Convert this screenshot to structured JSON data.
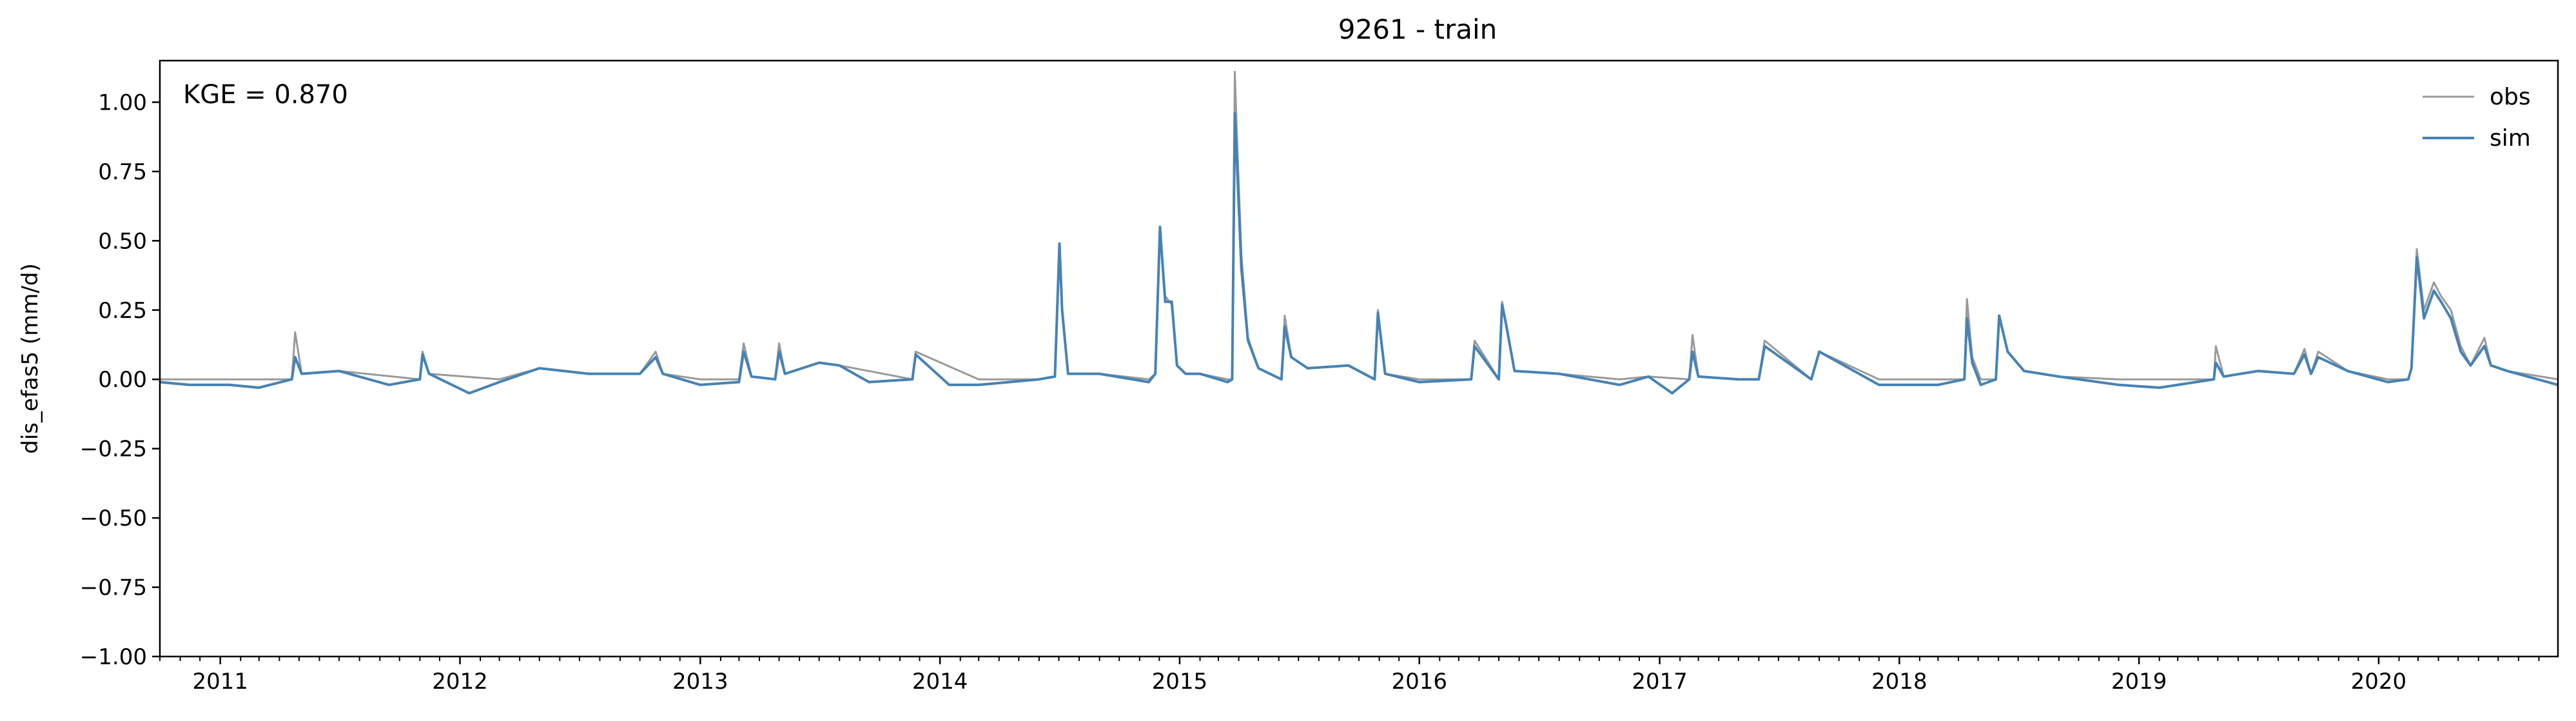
{
  "chart_data": {
    "type": "line",
    "title": "9261 - train",
    "xlabel": "",
    "ylabel": "dis_efas5 (mm/d)",
    "annotation": "KGE = 0.870",
    "xlim": [
      "2010-10-01",
      "2020-09-30"
    ],
    "ylim": [
      -1.0,
      1.15
    ],
    "yticks": [
      -1.0,
      -0.75,
      -0.5,
      -0.25,
      0.0,
      0.25,
      0.5,
      0.75,
      1.0
    ],
    "ytick_labels": [
      "−1.00",
      "−0.75",
      "−0.50",
      "−0.25",
      "0.00",
      "0.25",
      "0.50",
      "0.75",
      "1.00"
    ],
    "xticks": [
      "2011-01-01",
      "2012-01-01",
      "2013-01-01",
      "2014-01-01",
      "2015-01-01",
      "2016-01-01",
      "2017-01-01",
      "2018-01-01",
      "2019-01-01",
      "2020-01-01"
    ],
    "xtick_labels": [
      "2011",
      "2012",
      "2013",
      "2014",
      "2015",
      "2016",
      "2017",
      "2018",
      "2019",
      "2020"
    ],
    "grid": false,
    "legend_position": "top-right",
    "series": [
      {
        "name": "obs",
        "color": "#999999",
        "x": [
          "2010-10-01",
          "2011-01-15",
          "2011-04-20",
          "2011-04-25",
          "2011-05-05",
          "2011-07-01",
          "2011-11-01",
          "2011-11-05",
          "2011-11-15",
          "2012-03-01",
          "2012-05-01",
          "2012-07-15",
          "2012-10-01",
          "2012-10-25",
          "2012-11-05",
          "2013-01-01",
          "2013-03-01",
          "2013-03-08",
          "2013-03-20",
          "2013-04-25",
          "2013-05-01",
          "2013-05-10",
          "2013-07-01",
          "2013-08-01",
          "2013-11-20",
          "2013-11-25",
          "2014-03-01",
          "2014-06-01",
          "2014-06-25",
          "2014-07-02",
          "2014-07-06",
          "2014-07-15",
          "2014-09-01",
          "2014-11-15",
          "2014-11-25",
          "2014-12-02",
          "2014-12-10",
          "2014-12-20",
          "2014-12-28",
          "2015-01-10",
          "2015-02-01",
          "2015-03-15",
          "2015-03-22",
          "2015-03-26",
          "2015-03-29",
          "2015-04-05",
          "2015-04-15",
          "2015-05-01",
          "2015-06-05",
          "2015-06-10",
          "2015-06-20",
          "2015-07-15",
          "2015-09-15",
          "2015-10-25",
          "2015-10-30",
          "2015-11-10",
          "2016-01-01",
          "2016-03-20",
          "2016-03-25",
          "2016-05-01",
          "2016-05-06",
          "2016-05-12",
          "2016-05-25",
          "2016-08-01",
          "2016-11-01",
          "2016-12-15",
          "2017-02-15",
          "2017-02-20",
          "2017-03-01",
          "2017-05-01",
          "2017-06-01",
          "2017-06-10",
          "2017-08-20",
          "2017-09-01",
          "2017-12-01",
          "2018-03-01",
          "2018-04-10",
          "2018-04-14",
          "2018-04-22",
          "2018-05-05",
          "2018-05-28",
          "2018-06-02",
          "2018-06-15",
          "2018-07-10",
          "2018-09-01",
          "2018-12-01",
          "2019-02-01",
          "2019-04-25",
          "2019-04-28",
          "2019-05-10",
          "2019-07-01",
          "2019-08-25",
          "2019-09-10",
          "2019-09-20",
          "2019-10-01",
          "2019-11-15",
          "2020-01-15",
          "2020-02-15",
          "2020-02-20",
          "2020-02-28",
          "2020-03-10",
          "2020-03-25",
          "2020-04-05",
          "2020-04-20",
          "2020-05-05",
          "2020-05-20",
          "2020-06-10",
          "2020-06-20",
          "2020-07-15",
          "2020-09-30"
        ],
        "y": [
          0.0,
          0.0,
          0.0,
          0.17,
          0.02,
          0.03,
          0.0,
          0.1,
          0.02,
          0.0,
          0.04,
          0.02,
          0.02,
          0.1,
          0.02,
          0.0,
          0.0,
          0.13,
          0.01,
          0.0,
          0.13,
          0.02,
          0.06,
          0.05,
          0.0,
          0.1,
          0.0,
          0.0,
          0.01,
          0.48,
          0.25,
          0.02,
          0.02,
          0.0,
          0.02,
          0.54,
          0.3,
          0.27,
          0.05,
          0.02,
          0.02,
          0.0,
          0.0,
          1.11,
          0.9,
          0.45,
          0.15,
          0.04,
          0.0,
          0.23,
          0.08,
          0.04,
          0.05,
          0.0,
          0.25,
          0.02,
          0.0,
          0.0,
          0.14,
          0.0,
          0.28,
          0.2,
          0.03,
          0.02,
          0.0,
          0.01,
          0.0,
          0.16,
          0.01,
          0.0,
          0.0,
          0.14,
          0.0,
          0.1,
          0.0,
          0.0,
          0.0,
          0.29,
          0.08,
          0.0,
          0.0,
          0.22,
          0.1,
          0.03,
          0.01,
          0.0,
          0.0,
          0.0,
          0.12,
          0.01,
          0.03,
          0.02,
          0.11,
          0.02,
          0.1,
          0.03,
          0.0,
          0.0,
          0.04,
          0.47,
          0.25,
          0.35,
          0.3,
          0.25,
          0.12,
          0.05,
          0.15,
          0.05,
          0.03,
          0.0
        ]
      },
      {
        "name": "sim",
        "color": "#4682b4",
        "x": [
          "2010-10-01",
          "2010-11-15",
          "2011-01-15",
          "2011-03-01",
          "2011-04-20",
          "2011-04-25",
          "2011-05-05",
          "2011-07-01",
          "2011-09-15",
          "2011-11-01",
          "2011-11-05",
          "2011-11-15",
          "2012-01-15",
          "2012-03-01",
          "2012-05-01",
          "2012-07-15",
          "2012-10-01",
          "2012-10-25",
          "2012-11-05",
          "2013-01-01",
          "2013-03-01",
          "2013-03-08",
          "2013-03-20",
          "2013-04-25",
          "2013-05-01",
          "2013-05-10",
          "2013-07-01",
          "2013-08-01",
          "2013-09-15",
          "2013-11-20",
          "2013-11-25",
          "2014-01-15",
          "2014-03-01",
          "2014-06-01",
          "2014-06-25",
          "2014-07-02",
          "2014-07-06",
          "2014-07-15",
          "2014-09-01",
          "2014-11-15",
          "2014-11-25",
          "2014-12-02",
          "2014-12-10",
          "2014-12-20",
          "2014-12-28",
          "2015-01-10",
          "2015-02-01",
          "2015-03-15",
          "2015-03-22",
          "2015-03-26",
          "2015-03-29",
          "2015-04-05",
          "2015-04-15",
          "2015-05-01",
          "2015-06-05",
          "2015-06-10",
          "2015-06-20",
          "2015-07-15",
          "2015-09-15",
          "2015-10-25",
          "2015-10-30",
          "2015-11-10",
          "2016-01-01",
          "2016-03-20",
          "2016-03-25",
          "2016-05-01",
          "2016-05-06",
          "2016-05-12",
          "2016-05-25",
          "2016-08-01",
          "2016-11-01",
          "2016-12-15",
          "2017-01-20",
          "2017-02-15",
          "2017-02-20",
          "2017-03-01",
          "2017-05-01",
          "2017-06-01",
          "2017-06-10",
          "2017-08-20",
          "2017-09-01",
          "2017-12-01",
          "2018-01-20",
          "2018-03-01",
          "2018-04-10",
          "2018-04-14",
          "2018-04-22",
          "2018-05-05",
          "2018-05-28",
          "2018-06-02",
          "2018-06-15",
          "2018-07-10",
          "2018-09-01",
          "2018-12-01",
          "2019-02-01",
          "2019-04-25",
          "2019-04-28",
          "2019-05-10",
          "2019-07-01",
          "2019-08-25",
          "2019-09-10",
          "2019-09-20",
          "2019-10-01",
          "2019-11-15",
          "2020-01-15",
          "2020-02-15",
          "2020-02-20",
          "2020-02-28",
          "2020-03-10",
          "2020-03-25",
          "2020-04-05",
          "2020-04-20",
          "2020-05-05",
          "2020-05-20",
          "2020-06-10",
          "2020-06-20",
          "2020-07-15",
          "2020-09-30"
        ],
        "y": [
          -0.01,
          -0.02,
          -0.02,
          -0.03,
          0.0,
          0.08,
          0.02,
          0.03,
          -0.02,
          0.0,
          0.09,
          0.02,
          -0.05,
          -0.01,
          0.04,
          0.02,
          0.02,
          0.08,
          0.02,
          -0.02,
          -0.01,
          0.1,
          0.01,
          0.0,
          0.1,
          0.02,
          0.06,
          0.05,
          -0.01,
          0.0,
          0.09,
          -0.02,
          -0.02,
          0.0,
          0.01,
          0.49,
          0.25,
          0.02,
          0.02,
          -0.01,
          0.02,
          0.55,
          0.28,
          0.28,
          0.05,
          0.02,
          0.02,
          -0.01,
          0.0,
          0.96,
          0.8,
          0.4,
          0.14,
          0.04,
          0.0,
          0.19,
          0.08,
          0.04,
          0.05,
          0.0,
          0.24,
          0.02,
          -0.01,
          0.0,
          0.12,
          0.0,
          0.27,
          0.2,
          0.03,
          0.02,
          -0.02,
          0.01,
          -0.05,
          0.0,
          0.1,
          0.01,
          0.0,
          0.0,
          0.12,
          0.0,
          0.1,
          -0.02,
          -0.02,
          -0.02,
          0.0,
          0.22,
          0.06,
          -0.02,
          0.0,
          0.23,
          0.1,
          0.03,
          0.01,
          -0.02,
          -0.03,
          0.0,
          0.06,
          0.01,
          0.03,
          0.02,
          0.09,
          0.02,
          0.08,
          0.03,
          -0.01,
          0.0,
          0.04,
          0.44,
          0.22,
          0.32,
          0.28,
          0.22,
          0.1,
          0.05,
          0.12,
          0.05,
          0.03,
          -0.02
        ]
      }
    ]
  }
}
